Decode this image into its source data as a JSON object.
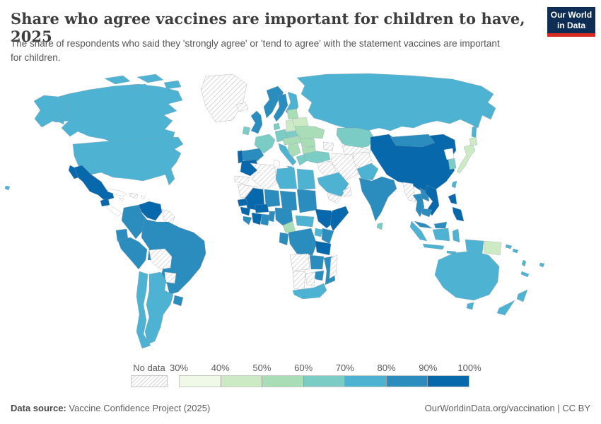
{
  "header": {
    "title": "Share who agree vaccines are important for children to have, 2025",
    "subtitle": "The share of respondents who said they 'strongly agree' or 'tend to agree' with the statement vaccines are important for children.",
    "logo_line1": "Our World",
    "logo_line2": "in Data",
    "logo_bg": "#0e2d55",
    "logo_accent": "#d7291f"
  },
  "legend": {
    "no_data_label": "No data",
    "tick_labels": [
      "30%",
      "40%",
      "50%",
      "60%",
      "70%",
      "80%",
      "90%",
      "100%"
    ]
  },
  "footer": {
    "source_label": "Data source:",
    "source_value": " Vaccine Confidence Project (2025)",
    "credit": "OurWorldinData.org/vaccination | CC BY"
  },
  "chart_data": {
    "type": "heatmap",
    "subtype": "choropleth-world-map",
    "title": "Share who agree vaccines are important for children to have, 2025",
    "unit": "% of respondents agreeing",
    "legend_position": "bottom",
    "bins": [
      {
        "key": "b1",
        "range": "30–40%",
        "color": "#f0f9e8"
      },
      {
        "key": "b2",
        "range": "40–50%",
        "color": "#ccebc5"
      },
      {
        "key": "b3",
        "range": "50–60%",
        "color": "#a8ddb5"
      },
      {
        "key": "b4",
        "range": "60–70%",
        "color": "#7bccc4"
      },
      {
        "key": "b5",
        "range": "70–80%",
        "color": "#4eb3d3"
      },
      {
        "key": "b6",
        "range": "80–90%",
        "color": "#2b8cbe"
      },
      {
        "key": "b7",
        "range": "90–100%",
        "color": "#0868ac"
      },
      {
        "key": "nodata",
        "range": "No data",
        "color": "hatched"
      },
      {
        "key": "none",
        "range": "not shown",
        "color": "#ffffff"
      }
    ],
    "countries": {
      "Canada": "b5",
      "United States": "b5",
      "Greenland": "nodata",
      "Mexico": "b7",
      "Guatemala": "b7",
      "Central America": "none",
      "Cuba": "none",
      "Hispaniola": "nodata",
      "Jamaica": "none",
      "Puerto Rico": "none",
      "Venezuela": "b7",
      "Colombia": "b6",
      "Guianas": "nodata",
      "Ecuador": "b6",
      "Peru": "b6",
      "Brazil": "b6",
      "Bolivia": "nodata",
      "Paraguay": "nodata",
      "Uruguay": "b6",
      "Argentina": "b5",
      "Chile": "b5",
      "Iceland": "nodata",
      "United Kingdom": "b6",
      "Ireland": "b4",
      "Norway": "b6",
      "Sweden": "b6",
      "Finland": "b5",
      "Denmark": "b4",
      "Germany": "b4",
      "France": "b4",
      "Spain": "b6",
      "Portugal": "b7",
      "Italy": "b5",
      "Poland": "b2",
      "Czechia-Slovakia": "b4",
      "Austria-Hungary": "b3",
      "Western Balkans": "b3",
      "Greece": "b4",
      "Romania": "b3",
      "Bulgaria": "b3",
      "Ukraine": "b3",
      "Belarus": "b2",
      "Baltics": "b3",
      "Russia": "b5",
      "Kazakhstan": "b4",
      "Central Asia": "nodata",
      "Caucasus": "nodata",
      "Turkey": "b4",
      "Syria-Iraq": "nodata",
      "Iran": "nodata",
      "Afghanistan": "nodata",
      "Pakistan": "b5",
      "India": "b6",
      "Sri Lanka": "b4",
      "Saudi Arabia": "b5",
      "Yemen": "nodata",
      "Oman": "nodata",
      "Morocco": "b7",
      "Western Sahara": "nodata",
      "Algeria": "nodata",
      "Tunisia": "none",
      "Libya": "b5",
      "Egypt": "b5",
      "Mauritania": "nodata",
      "Mali": "b7",
      "Niger": "b6",
      "Chad": "b6",
      "Sudan": "b6",
      "Senegal": "b7",
      "Guinea": "b7",
      "Sierra Leone-Liberia": "b6",
      "Ivory Coast": "b7",
      "Ghana": "b6",
      "Burkina Faso": "b7",
      "Benin-Togo": "b6",
      "Nigeria": "b6",
      "Cameroon": "b3",
      "Central African Republic": "b5",
      "Ethiopia": "b7",
      "Somalia": "b7",
      "Congo-Gabon": "b6",
      "DR Congo": "b6",
      "Uganda": "b5",
      "Kenya": "b6",
      "Tanzania": "b7",
      "Angola": "nodata",
      "Zambia": "b6",
      "Mozambique": "b6",
      "Zimbabwe": "b6",
      "Namibia": "nodata",
      "Botswana": "nodata",
      "South Africa": "b5",
      "Madagascar": "nodata",
      "China": "b7",
      "Mongolia": "b6",
      "Myanmar": "nodata",
      "Thailand": "b6",
      "Laos": "b6",
      "Vietnam": "b7",
      "Cambodia": "b6",
      "Malaysia": "b6",
      "Indonesia": "b5",
      "Philippines": "b7",
      "Taiwan": "b5",
      "South Korea": "b4",
      "North Korea": "none",
      "Japan": "b2",
      "Papua New Guinea": "b2",
      "Australia": "b5",
      "New Zealand": "b5",
      "Solomon Islands": "b5",
      "Vanuatu": "b5",
      "New Caledonia": "b5",
      "Fiji": "b5"
    }
  }
}
